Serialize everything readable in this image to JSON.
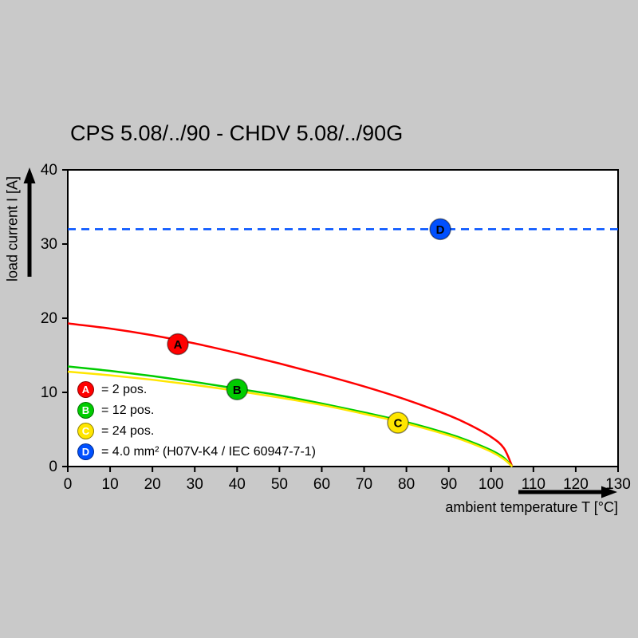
{
  "title": "CPS 5.08/../90 - CHDV 5.08/../90G",
  "colors": {
    "background": "#c9c9c9",
    "plot_bg": "#ffffff",
    "axis": "#000000"
  },
  "chart_data": {
    "type": "line",
    "title": "CPS 5.08/../90 - CHDV 5.08/../90G",
    "xlabel": "ambient temperature T [°C]",
    "ylabel": "load current I [A]",
    "xlim": [
      0,
      130
    ],
    "ylim": [
      0,
      40
    ],
    "x_ticks": [
      0,
      10,
      20,
      30,
      40,
      50,
      60,
      70,
      80,
      90,
      100,
      110,
      120,
      130
    ],
    "y_ticks": [
      0,
      10,
      20,
      30,
      40
    ],
    "grid": false,
    "legend_position": "inside-bottom-left",
    "series": [
      {
        "id": "A",
        "name": "2 pos.",
        "color": "#ff0000",
        "style": "solid",
        "points": [
          [
            0,
            19.3
          ],
          [
            10,
            18.6
          ],
          [
            20,
            17.7
          ],
          [
            30,
            16.6
          ],
          [
            40,
            15.3
          ],
          [
            50,
            13.9
          ],
          [
            60,
            12.4
          ],
          [
            70,
            10.8
          ],
          [
            80,
            9.0
          ],
          [
            90,
            6.9
          ],
          [
            95,
            5.6
          ],
          [
            100,
            4.0
          ],
          [
            103,
            2.5
          ],
          [
            105,
            0
          ]
        ],
        "marker": {
          "x": 26,
          "y": 16.5
        }
      },
      {
        "id": "B",
        "name": "12 pos.",
        "color": "#00cc00",
        "style": "solid",
        "points": [
          [
            0,
            13.5
          ],
          [
            10,
            12.9
          ],
          [
            20,
            12.2
          ],
          [
            30,
            11.4
          ],
          [
            40,
            10.5
          ],
          [
            50,
            9.6
          ],
          [
            60,
            8.5
          ],
          [
            70,
            7.3
          ],
          [
            80,
            6.0
          ],
          [
            90,
            4.4
          ],
          [
            95,
            3.4
          ],
          [
            100,
            2.2
          ],
          [
            103,
            1.2
          ],
          [
            105,
            0
          ]
        ],
        "marker": {
          "x": 40,
          "y": 10.4
        }
      },
      {
        "id": "C",
        "name": "24 pos.",
        "color": "#ffe600",
        "style": "solid",
        "points": [
          [
            0,
            12.8
          ],
          [
            10,
            12.3
          ],
          [
            20,
            11.7
          ],
          [
            30,
            11.0
          ],
          [
            40,
            10.2
          ],
          [
            50,
            9.3
          ],
          [
            60,
            8.3
          ],
          [
            70,
            7.1
          ],
          [
            80,
            5.8
          ],
          [
            90,
            4.2
          ],
          [
            95,
            3.2
          ],
          [
            100,
            2.0
          ],
          [
            103,
            1.0
          ],
          [
            105,
            0
          ]
        ],
        "marker": {
          "x": 78,
          "y": 5.9
        }
      },
      {
        "id": "D",
        "name": "4.0 mm² (H07V-K4 / IEC 60947-7-1)",
        "color": "#0050ff",
        "style": "dashed",
        "points": [
          [
            0,
            32
          ],
          [
            130,
            32
          ]
        ],
        "marker": {
          "x": 88,
          "y": 32
        }
      }
    ],
    "legend": [
      {
        "id": "A",
        "color": "#ff0000",
        "label": "= 2 pos."
      },
      {
        "id": "B",
        "color": "#00cc00",
        "label": "= 12 pos."
      },
      {
        "id": "C",
        "color": "#ffe600",
        "label": "= 24 pos."
      },
      {
        "id": "D",
        "color": "#0050ff",
        "label": "= 4.0 mm² (H07V-K4 / IEC 60947-7-1)"
      }
    ]
  }
}
